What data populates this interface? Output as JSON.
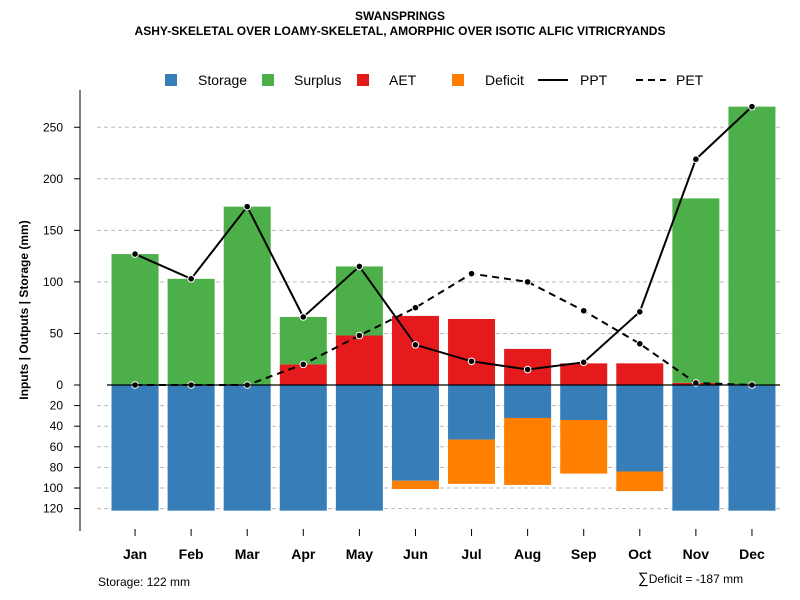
{
  "header": {
    "title": "SWANSPRINGS",
    "subtitle": "ASHY-SKELETAL OVER LOAMY-SKELETAL, AMORPHIC OVER ISOTIC ALFIC VITRICRYANDS"
  },
  "footer": {
    "storage_note": "Storage: 122 mm",
    "deficit_symbol": "∑",
    "deficit_note": "Deficit = -187 mm"
  },
  "colors": {
    "storage": "#377EB8",
    "surplus": "#4DAF4A",
    "aet": "#E41A1C",
    "deficit": "#FF7F00",
    "line": "#000000",
    "grid": "#bbbbbb"
  },
  "chart_data": {
    "type": "bar",
    "title": "SWANSPRINGS",
    "subtitle": "ASHY-SKELETAL OVER LOAMY-SKELETAL, AMORPHIC OVER ISOTIC ALFIC VITRICRYANDS",
    "ylabel": "Inputs | Outputs | Storage    (mm)",
    "xlabel": "",
    "categories": [
      "Jan",
      "Feb",
      "Mar",
      "Apr",
      "May",
      "Jun",
      "Jul",
      "Aug",
      "Sep",
      "Oct",
      "Nov",
      "Dec"
    ],
    "upper_ylim": [
      0,
      270
    ],
    "upper_ticks": [
      "0",
      "50",
      "100",
      "150",
      "200",
      "250"
    ],
    "lower_ylim": [
      0,
      122
    ],
    "lower_ticks": [
      "20",
      "40",
      "60",
      "80",
      "100",
      "120"
    ],
    "legend": [
      "Storage",
      "Surplus",
      "AET",
      "Deficit",
      "PPT",
      "PET"
    ],
    "legend_position": "top",
    "series": [
      {
        "name": "AET",
        "values": [
          0,
          0,
          0,
          20,
          48,
          67,
          64,
          35,
          21,
          21,
          2,
          0
        ]
      },
      {
        "name": "Surplus",
        "values": [
          127,
          103,
          173,
          46,
          67,
          0,
          0,
          0,
          0,
          0,
          179,
          270
        ]
      },
      {
        "name": "Storage",
        "values": [
          122,
          122,
          122,
          122,
          122,
          93,
          53,
          32,
          34,
          84,
          122,
          122
        ]
      },
      {
        "name": "Deficit",
        "values": [
          0,
          0,
          0,
          0,
          0,
          8,
          43,
          65,
          52,
          19,
          0,
          0
        ]
      },
      {
        "name": "PPT",
        "values": [
          127,
          103,
          173,
          66,
          115,
          39,
          23,
          15,
          22,
          71,
          219,
          270
        ]
      },
      {
        "name": "PET",
        "values": [
          0,
          0,
          0,
          20,
          48,
          75,
          108,
          100,
          72,
          40,
          2,
          0
        ]
      }
    ],
    "storage_capacity_mm": 122,
    "total_deficit_mm": -187
  }
}
